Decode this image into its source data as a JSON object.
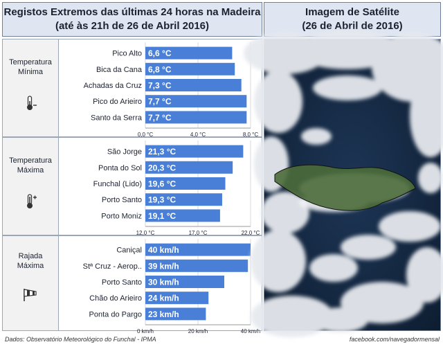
{
  "header": {
    "left_line1": "Registos Extremos das últimas 24 horas na Madeira",
    "left_line2": "(até às 21h de 26 de Abril 2016)",
    "right_line1": "Imagem de Satélite",
    "right_line2": "(26 de Abril de 2016)"
  },
  "panels": {
    "min": {
      "label_line1": "Temperatura",
      "label_line2": "Mínima",
      "icon": "thermometer-minus-icon"
    },
    "max": {
      "label_line1": "Temperatura",
      "label_line2": "Máxima",
      "icon": "thermometer-plus-icon"
    },
    "gust": {
      "label_line1": "Rajada",
      "label_line2": "Máxima",
      "icon": "windsock-icon"
    }
  },
  "colors": {
    "bar": "#4a7fd8",
    "bar_text": "#ffffff",
    "header_bg": "#dfe6f1",
    "sea": "#12243a"
  },
  "chart_data": [
    {
      "type": "bar",
      "orientation": "horizontal",
      "title": "Temperatura Mínima",
      "categories": [
        "Pico Alto",
        "Bica da Cana",
        "Achadas da Cruz",
        "Pico do Arieiro",
        "Santo da Serra"
      ],
      "values": [
        6.6,
        6.8,
        7.3,
        7.7,
        7.7
      ],
      "value_labels": [
        "6,6 °C",
        "6,8 °C",
        "7,3 °C",
        "7,7 °C",
        "7,7 °C"
      ],
      "xlim": [
        0,
        8
      ],
      "ticks": [
        0,
        4,
        8
      ],
      "tick_labels": [
        "0,0 °C",
        "4,0 °C",
        "8,0 °C"
      ]
    },
    {
      "type": "bar",
      "orientation": "horizontal",
      "title": "Temperatura Máxima",
      "categories": [
        "São Jorge",
        "Ponta do Sol",
        "Funchal (Lido)",
        "Porto Santo",
        "Porto Moniz"
      ],
      "values": [
        21.3,
        20.3,
        19.6,
        19.3,
        19.1
      ],
      "value_labels": [
        "21,3 °C",
        "20,3 °C",
        "19,6 °C",
        "19,3 °C",
        "19,1 °C"
      ],
      "xlim": [
        12,
        22
      ],
      "ticks": [
        12,
        17,
        22
      ],
      "tick_labels": [
        "12,0 °C",
        "17,0 °C",
        "22,0 °C"
      ]
    },
    {
      "type": "bar",
      "orientation": "horizontal",
      "title": "Rajada Máxima",
      "categories": [
        "Caniçal",
        "Stª Cruz - Aerop..",
        "Porto Santo",
        "Chão do Arieiro",
        "Ponta do Pargo"
      ],
      "values": [
        40,
        39,
        30,
        24,
        23
      ],
      "value_labels": [
        "40 km/h",
        "39 km/h",
        "30 km/h",
        "24 km/h",
        "23 km/h"
      ],
      "xlim": [
        0,
        40
      ],
      "ticks": [
        0,
        20,
        40
      ],
      "tick_labels": [
        "0 km/h",
        "20 km/h",
        "40 km/h"
      ]
    }
  ],
  "footer": {
    "source": "Dados:  Observatório Meteorológico do Funchal - IPMA",
    "credit": "facebook.com/navegadormensal"
  }
}
